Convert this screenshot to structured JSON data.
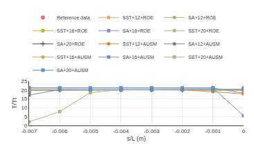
{
  "chart_data": {
    "type": "line",
    "xlabel": "s/L (m)",
    "ylabel": "T/Tt",
    "x": [
      -0.007,
      -0.006,
      -0.005,
      -0.004,
      -0.003,
      -0.002,
      -0.001,
      0
    ],
    "xlim": [
      -0.007,
      0
    ],
    "ylim": [
      0,
      25
    ],
    "xticks": [
      -0.007,
      -0.006,
      -0.005,
      -0.004,
      -0.003,
      -0.002,
      -0.001,
      0
    ],
    "yticks": [
      0,
      5,
      10,
      15,
      20,
      25
    ],
    "grid": true,
    "legend": "top",
    "series": [
      {
        "name": "Reference data",
        "color": "#e07070",
        "marker": "circle",
        "line_style": "none",
        "values": [
          18.6,
          20.05,
          20.1,
          20.1,
          20.1,
          20.1,
          21.1,
          21.1
        ]
      },
      {
        "name": "SST+12+ROE",
        "color": "#f0a060",
        "marker": "circle",
        "line_style": "solid",
        "values": [
          20.0,
          20.1,
          20.1,
          20.1,
          20.1,
          20.1,
          20.1,
          20.0
        ]
      },
      {
        "name": "SA+12+ROE",
        "color": "#a0b870",
        "marker": "circle",
        "line_style": "solid",
        "values": [
          20.0,
          20.1,
          20.1,
          20.1,
          20.1,
          20.1,
          20.1,
          20.2
        ]
      },
      {
        "name": "SST+16+ROE",
        "color": "#c8b030",
        "marker": "square",
        "line_style": "solid",
        "values": [
          20.0,
          20.1,
          20.1,
          20.1,
          20.1,
          20.1,
          20.1,
          20.35
        ]
      },
      {
        "name": "SA+16+ROE",
        "color": "#8888cc",
        "marker": "square",
        "line_style": "solid",
        "values": [
          21.1,
          21.1,
          21.1,
          21.1,
          21.1,
          21.1,
          21.1,
          18.2
        ]
      },
      {
        "name": "SST+20+ROE",
        "color": "#a8c068",
        "marker": "circle",
        "line_style": "solid",
        "values": [
          20.0,
          20.1,
          20.1,
          20.1,
          20.1,
          20.1,
          20.1,
          20.0
        ]
      },
      {
        "name": "SA+20+ROE",
        "color": "#505050",
        "marker": "plus",
        "line_style": "solid",
        "values": [
          20.0,
          20.1,
          20.1,
          20.1,
          20.1,
          20.1,
          20.1,
          20.0
        ]
      },
      {
        "name": "SST+12+AUSM",
        "color": "#e08030",
        "marker": "circle",
        "line_style": "solid",
        "values": [
          20.0,
          20.1,
          20.1,
          20.1,
          20.1,
          20.1,
          19.0,
          17.8
        ]
      },
      {
        "name": "SA+12+AUSM",
        "color": "#808080",
        "marker": "circle",
        "line_style": "solid",
        "values": [
          20.0,
          20.1,
          20.1,
          20.1,
          20.1,
          20.1,
          20.1,
          20.1
        ]
      },
      {
        "name": "SST+16+AUSM",
        "color": "#c8a858",
        "marker": "circle",
        "line_style": "solid",
        "values": [
          20.0,
          20.1,
          20.1,
          20.1,
          20.1,
          20.1,
          20.1,
          20.1
        ]
      },
      {
        "name": "SA+16+AUSM",
        "color": "#7090d0",
        "marker": "square",
        "line_style": "solid",
        "values": [
          21.1,
          21.1,
          21.1,
          21.1,
          21.1,
          21.1,
          21.1,
          5.5
        ]
      },
      {
        "name": "SST+20+AUSM",
        "color": "#b0b888",
        "marker": "square",
        "line_style": "solid",
        "values": [
          2.0,
          7.8,
          18.5,
          20.1,
          20.1,
          20.1,
          20.0,
          20.0
        ]
      },
      {
        "name": "SA+20+AUSM",
        "color": "#6090b8",
        "marker": "square",
        "line_style": "solid",
        "values": [
          17.1,
          20.2,
          20.1,
          20.1,
          20.1,
          20.1,
          20.1,
          20.3
        ]
      }
    ]
  }
}
